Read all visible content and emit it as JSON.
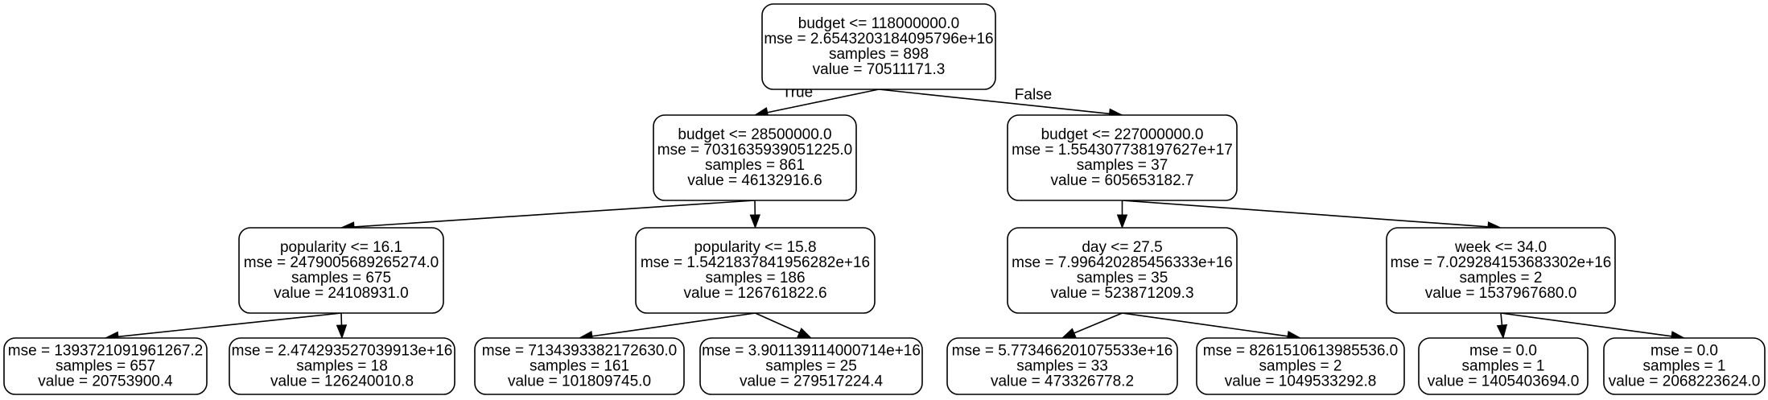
{
  "tree": {
    "nodes": [
      {
        "id": "n0",
        "lines": [
          "budget <= 118000000.0",
          "mse = 2.6543203184095796e+16",
          "samples = 898",
          "value = 70511171.3"
        ]
      },
      {
        "id": "n1",
        "lines": [
          "budget <= 28500000.0",
          "mse = 7031635939051225.0",
          "samples = 861",
          "value = 46132916.6"
        ]
      },
      {
        "id": "n2",
        "lines": [
          "budget <= 227000000.0",
          "mse = 1.554307738197627e+17",
          "samples = 37",
          "value = 605653182.7"
        ]
      },
      {
        "id": "n3",
        "lines": [
          "popularity <= 16.1",
          "mse = 2479005689265274.0",
          "samples = 675",
          "value = 24108931.0"
        ]
      },
      {
        "id": "n4",
        "lines": [
          "popularity <= 15.8",
          "mse = 1.5421837841956282e+16",
          "samples = 186",
          "value = 126761822.6"
        ]
      },
      {
        "id": "n5",
        "lines": [
          "day <= 27.5",
          "mse = 7.996420285456333e+16",
          "samples = 35",
          "value = 523871209.3"
        ]
      },
      {
        "id": "n6",
        "lines": [
          "week <= 34.0",
          "mse = 7.029284153683302e+16",
          "samples = 2",
          "value = 1537967680.0"
        ]
      },
      {
        "id": "n7",
        "lines": [
          "mse = 1393721091961267.2",
          "samples = 657",
          "value = 20753900.4"
        ]
      },
      {
        "id": "n8",
        "lines": [
          "mse = 2.474293527039913e+16",
          "samples = 18",
          "value = 126240010.8"
        ]
      },
      {
        "id": "n9",
        "lines": [
          "mse = 7134393382172630.0",
          "samples = 161",
          "value = 101809745.0"
        ]
      },
      {
        "id": "n10",
        "lines": [
          "mse = 3.901139114000714e+16",
          "samples = 25",
          "value = 279517224.4"
        ]
      },
      {
        "id": "n11",
        "lines": [
          "mse = 5.773466201075533e+16",
          "samples = 33",
          "value = 473326778.2"
        ]
      },
      {
        "id": "n12",
        "lines": [
          "mse = 8261510613985536.0",
          "samples = 2",
          "value = 1049533292.8"
        ]
      },
      {
        "id": "n13",
        "lines": [
          "mse = 0.0",
          "samples = 1",
          "value = 1405403694.0"
        ]
      },
      {
        "id": "n14",
        "lines": [
          "mse = 0.0",
          "samples = 1",
          "value = 2068223624.0"
        ]
      }
    ],
    "edges": [
      {
        "from": "n0",
        "to": "n1",
        "label": "True"
      },
      {
        "from": "n0",
        "to": "n2",
        "label": "False"
      },
      {
        "from": "n1",
        "to": "n3",
        "label": ""
      },
      {
        "from": "n1",
        "to": "n4",
        "label": ""
      },
      {
        "from": "n2",
        "to": "n5",
        "label": ""
      },
      {
        "from": "n2",
        "to": "n6",
        "label": ""
      },
      {
        "from": "n3",
        "to": "n7",
        "label": ""
      },
      {
        "from": "n3",
        "to": "n8",
        "label": ""
      },
      {
        "from": "n4",
        "to": "n9",
        "label": ""
      },
      {
        "from": "n4",
        "to": "n10",
        "label": ""
      },
      {
        "from": "n5",
        "to": "n11",
        "label": ""
      },
      {
        "from": "n5",
        "to": "n12",
        "label": ""
      },
      {
        "from": "n6",
        "to": "n13",
        "label": ""
      },
      {
        "from": "n6",
        "to": "n14",
        "label": ""
      }
    ]
  }
}
